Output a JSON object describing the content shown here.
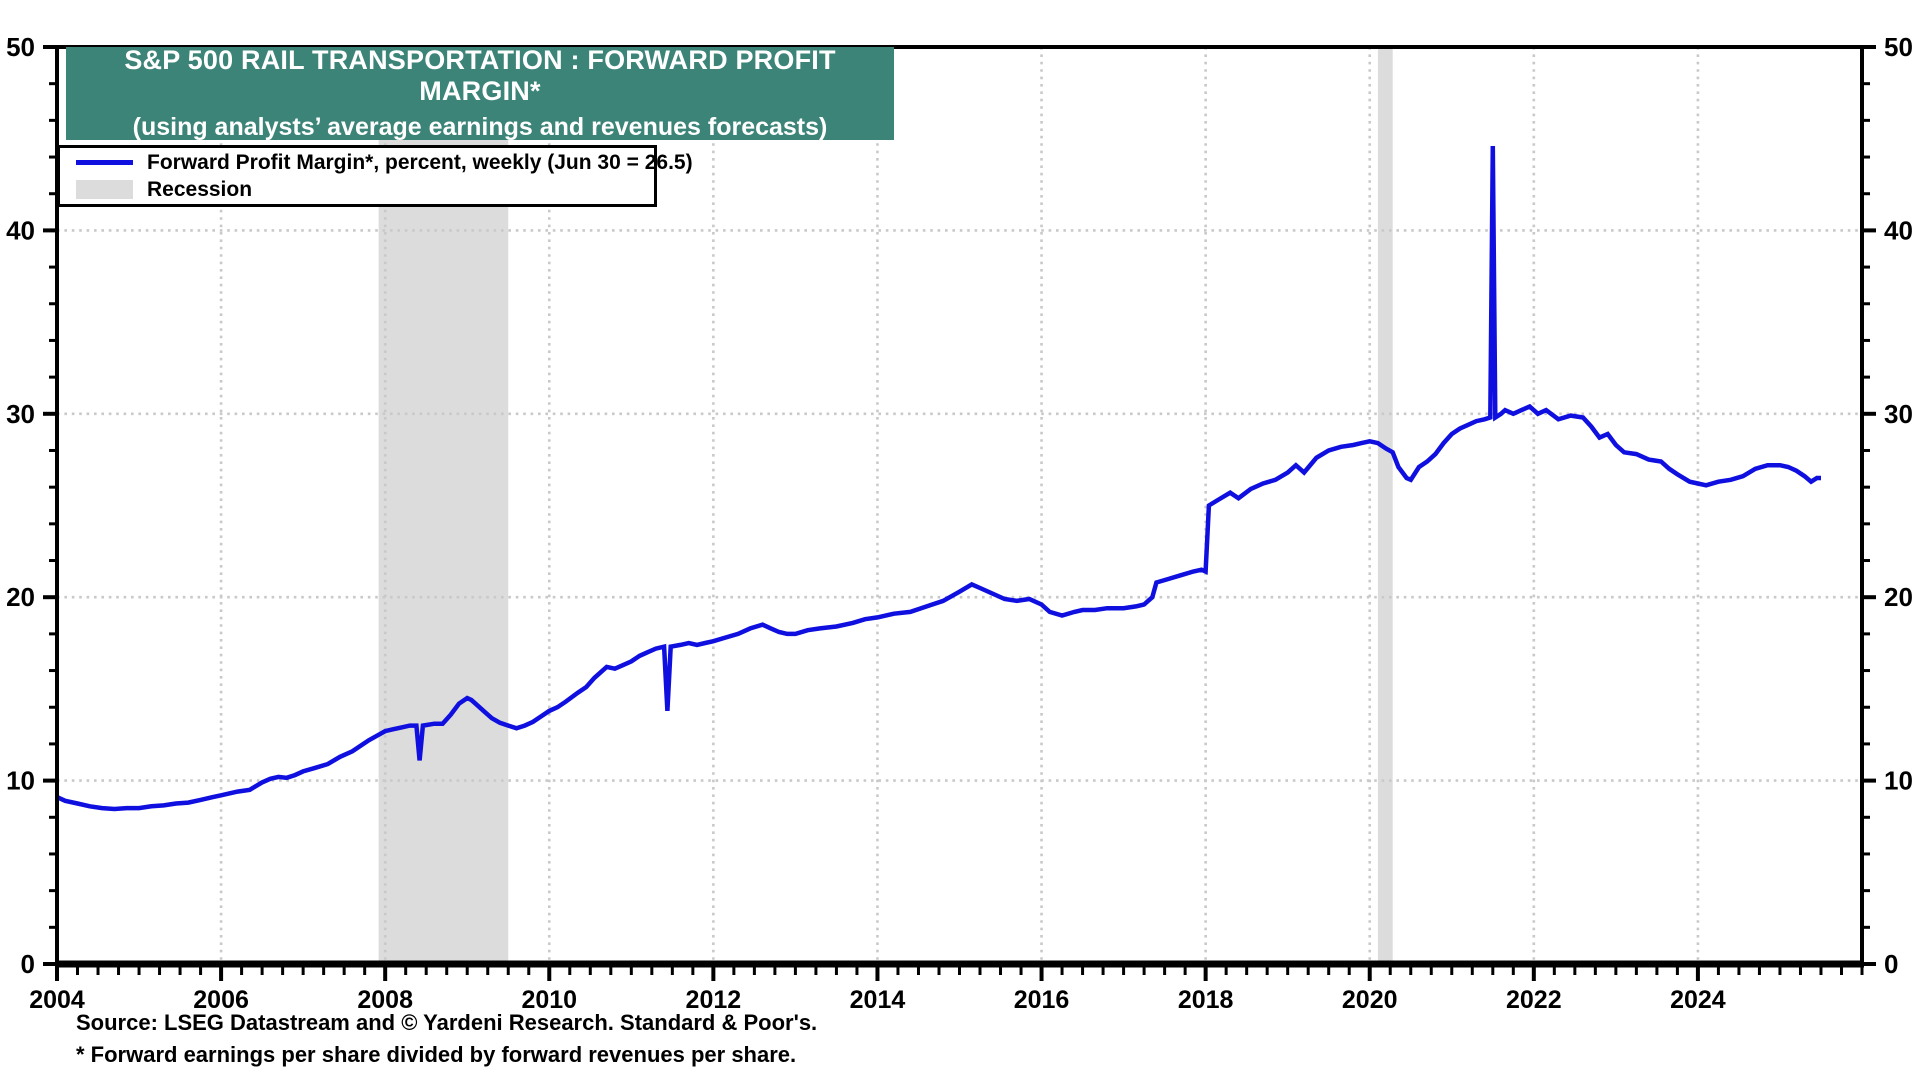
{
  "header": {
    "title": "S&P 500 RAIL TRANSPORTATION : FORWARD PROFIT MARGIN*",
    "subtitle": "(using analysts’ average earnings and revenues forecasts)",
    "title_bg": "#3c8478",
    "title_color": "#ffffff"
  },
  "legend": {
    "items": [
      {
        "label": "Forward Profit Margin*, percent, weekly (Jun 30 = 26.5)",
        "swatch": "line",
        "color": "#0f0fe0"
      },
      {
        "label": "Recession",
        "swatch": "band",
        "color": "#dcdcdc"
      }
    ]
  },
  "footer": {
    "source": "Source: LSEG Datastream and © Yardeni Research. Standard & Poor's.",
    "footnote": "* Forward earnings per share divided by forward revenues per share."
  },
  "chart_data": {
    "type": "line",
    "title": "S&P 500 RAIL TRANSPORTATION : FORWARD PROFIT MARGIN*",
    "subtitle": "(using analysts’ average earnings and revenues forecasts)",
    "xlabel": "",
    "ylabel": "percent",
    "xlim": [
      2004,
      2026
    ],
    "ylim": [
      0,
      50
    ],
    "grid": {
      "h_values": [
        10,
        20,
        30,
        40
      ],
      "v_years": [
        2006,
        2008,
        2010,
        2012,
        2014,
        2016,
        2018,
        2020,
        2022,
        2024
      ],
      "color": "#c9c9c9"
    },
    "axis_color": "#000000",
    "x_major_ticks": [
      2004,
      2006,
      2008,
      2010,
      2012,
      2014,
      2016,
      2018,
      2020,
      2022,
      2024
    ],
    "x_tick_labels": [
      "2004",
      "2006",
      "2008",
      "2010",
      "2012",
      "2014",
      "2016",
      "2018",
      "2020",
      "2022",
      "2024"
    ],
    "x_minor_step": 0.25,
    "y_major_ticks": [
      0,
      10,
      20,
      30,
      40,
      50
    ],
    "y_tick_labels": [
      "0",
      "10",
      "20",
      "30",
      "40",
      "50"
    ],
    "y_minor_step": 2,
    "legend_position": "top-left",
    "recession_bands": [
      {
        "start": 2007.92,
        "end": 2009.5
      },
      {
        "start": 2020.1,
        "end": 2020.28
      }
    ],
    "recession_color": "#dcdcdc",
    "series": [
      {
        "name": "Forward Profit Margin*, percent, weekly (Jun 30 = 26.5)",
        "color": "#0f0fe0",
        "points": [
          [
            2004.0,
            9.1
          ],
          [
            2004.1,
            8.9
          ],
          [
            2004.25,
            8.75
          ],
          [
            2004.4,
            8.6
          ],
          [
            2004.55,
            8.5
          ],
          [
            2004.7,
            8.45
          ],
          [
            2004.85,
            8.5
          ],
          [
            2005.0,
            8.5
          ],
          [
            2005.15,
            8.6
          ],
          [
            2005.3,
            8.65
          ],
          [
            2005.45,
            8.75
          ],
          [
            2005.6,
            8.8
          ],
          [
            2005.75,
            8.95
          ],
          [
            2005.9,
            9.1
          ],
          [
            2006.0,
            9.2
          ],
          [
            2006.2,
            9.4
          ],
          [
            2006.35,
            9.5
          ],
          [
            2006.5,
            9.9
          ],
          [
            2006.6,
            10.1
          ],
          [
            2006.7,
            10.2
          ],
          [
            2006.8,
            10.15
          ],
          [
            2006.9,
            10.3
          ],
          [
            2007.0,
            10.5
          ],
          [
            2007.15,
            10.7
          ],
          [
            2007.3,
            10.9
          ],
          [
            2007.45,
            11.3
          ],
          [
            2007.6,
            11.6
          ],
          [
            2007.7,
            11.9
          ],
          [
            2007.8,
            12.2
          ],
          [
            2007.92,
            12.5
          ],
          [
            2008.0,
            12.7
          ],
          [
            2008.1,
            12.8
          ],
          [
            2008.2,
            12.9
          ],
          [
            2008.3,
            13.0
          ],
          [
            2008.38,
            13.0
          ],
          [
            2008.42,
            11.1
          ],
          [
            2008.46,
            13.0
          ],
          [
            2008.6,
            13.1
          ],
          [
            2008.7,
            13.1
          ],
          [
            2008.8,
            13.6
          ],
          [
            2008.9,
            14.2
          ],
          [
            2009.0,
            14.5
          ],
          [
            2009.05,
            14.4
          ],
          [
            2009.1,
            14.2
          ],
          [
            2009.2,
            13.8
          ],
          [
            2009.3,
            13.4
          ],
          [
            2009.4,
            13.15
          ],
          [
            2009.5,
            13.0
          ],
          [
            2009.6,
            12.85
          ],
          [
            2009.7,
            13.0
          ],
          [
            2009.8,
            13.2
          ],
          [
            2009.9,
            13.5
          ],
          [
            2010.0,
            13.8
          ],
          [
            2010.1,
            14.0
          ],
          [
            2010.2,
            14.3
          ],
          [
            2010.35,
            14.8
          ],
          [
            2010.45,
            15.1
          ],
          [
            2010.55,
            15.6
          ],
          [
            2010.65,
            16.0
          ],
          [
            2010.7,
            16.2
          ],
          [
            2010.8,
            16.1
          ],
          [
            2010.9,
            16.3
          ],
          [
            2011.0,
            16.5
          ],
          [
            2011.1,
            16.8
          ],
          [
            2011.2,
            17.0
          ],
          [
            2011.3,
            17.2
          ],
          [
            2011.4,
            17.3
          ],
          [
            2011.44,
            13.8
          ],
          [
            2011.48,
            17.3
          ],
          [
            2011.6,
            17.4
          ],
          [
            2011.7,
            17.5
          ],
          [
            2011.8,
            17.4
          ],
          [
            2011.9,
            17.5
          ],
          [
            2012.0,
            17.6
          ],
          [
            2012.15,
            17.8
          ],
          [
            2012.3,
            18.0
          ],
          [
            2012.45,
            18.3
          ],
          [
            2012.6,
            18.5
          ],
          [
            2012.7,
            18.3
          ],
          [
            2012.8,
            18.1
          ],
          [
            2012.9,
            18.0
          ],
          [
            2013.0,
            18.0
          ],
          [
            2013.15,
            18.2
          ],
          [
            2013.3,
            18.3
          ],
          [
            2013.5,
            18.4
          ],
          [
            2013.7,
            18.6
          ],
          [
            2013.85,
            18.8
          ],
          [
            2014.0,
            18.9
          ],
          [
            2014.2,
            19.1
          ],
          [
            2014.4,
            19.2
          ],
          [
            2014.6,
            19.5
          ],
          [
            2014.8,
            19.8
          ],
          [
            2015.0,
            20.3
          ],
          [
            2015.15,
            20.7
          ],
          [
            2015.25,
            20.5
          ],
          [
            2015.4,
            20.2
          ],
          [
            2015.55,
            19.9
          ],
          [
            2015.7,
            19.8
          ],
          [
            2015.85,
            19.9
          ],
          [
            2016.0,
            19.6
          ],
          [
            2016.1,
            19.2
          ],
          [
            2016.25,
            19.0
          ],
          [
            2016.4,
            19.2
          ],
          [
            2016.5,
            19.3
          ],
          [
            2016.65,
            19.3
          ],
          [
            2016.8,
            19.4
          ],
          [
            2017.0,
            19.4
          ],
          [
            2017.15,
            19.5
          ],
          [
            2017.25,
            19.6
          ],
          [
            2017.35,
            20.0
          ],
          [
            2017.4,
            20.8
          ],
          [
            2017.55,
            21.0
          ],
          [
            2017.7,
            21.2
          ],
          [
            2017.85,
            21.4
          ],
          [
            2017.95,
            21.5
          ],
          [
            2018.0,
            21.4
          ],
          [
            2018.04,
            25.0
          ],
          [
            2018.15,
            25.3
          ],
          [
            2018.3,
            25.7
          ],
          [
            2018.4,
            25.4
          ],
          [
            2018.55,
            25.9
          ],
          [
            2018.7,
            26.2
          ],
          [
            2018.85,
            26.4
          ],
          [
            2019.0,
            26.8
          ],
          [
            2019.1,
            27.2
          ],
          [
            2019.2,
            26.8
          ],
          [
            2019.35,
            27.6
          ],
          [
            2019.5,
            28.0
          ],
          [
            2019.65,
            28.2
          ],
          [
            2019.8,
            28.3
          ],
          [
            2019.9,
            28.4
          ],
          [
            2020.0,
            28.5
          ],
          [
            2020.1,
            28.4
          ],
          [
            2020.2,
            28.1
          ],
          [
            2020.28,
            27.9
          ],
          [
            2020.35,
            27.1
          ],
          [
            2020.45,
            26.5
          ],
          [
            2020.5,
            26.4
          ],
          [
            2020.6,
            27.1
          ],
          [
            2020.7,
            27.4
          ],
          [
            2020.8,
            27.8
          ],
          [
            2020.9,
            28.4
          ],
          [
            2021.0,
            28.9
          ],
          [
            2021.1,
            29.2
          ],
          [
            2021.2,
            29.4
          ],
          [
            2021.3,
            29.6
          ],
          [
            2021.4,
            29.7
          ],
          [
            2021.47,
            29.8
          ],
          [
            2021.5,
            44.6
          ],
          [
            2021.53,
            29.8
          ],
          [
            2021.6,
            30.0
          ],
          [
            2021.65,
            30.2
          ],
          [
            2021.75,
            30.0
          ],
          [
            2021.85,
            30.2
          ],
          [
            2021.95,
            30.4
          ],
          [
            2022.05,
            30.0
          ],
          [
            2022.15,
            30.2
          ],
          [
            2022.3,
            29.7
          ],
          [
            2022.45,
            29.9
          ],
          [
            2022.6,
            29.8
          ],
          [
            2022.7,
            29.3
          ],
          [
            2022.8,
            28.7
          ],
          [
            2022.9,
            28.9
          ],
          [
            2023.0,
            28.3
          ],
          [
            2023.1,
            27.9
          ],
          [
            2023.25,
            27.8
          ],
          [
            2023.4,
            27.5
          ],
          [
            2023.55,
            27.4
          ],
          [
            2023.65,
            27.0
          ],
          [
            2023.75,
            26.7
          ],
          [
            2023.9,
            26.3
          ],
          [
            2024.0,
            26.2
          ],
          [
            2024.1,
            26.1
          ],
          [
            2024.25,
            26.3
          ],
          [
            2024.4,
            26.4
          ],
          [
            2024.55,
            26.6
          ],
          [
            2024.7,
            27.0
          ],
          [
            2024.85,
            27.2
          ],
          [
            2025.0,
            27.2
          ],
          [
            2025.1,
            27.1
          ],
          [
            2025.2,
            26.9
          ],
          [
            2025.3,
            26.6
          ],
          [
            2025.38,
            26.3
          ],
          [
            2025.45,
            26.5
          ],
          [
            2025.5,
            26.5
          ]
        ]
      }
    ]
  }
}
